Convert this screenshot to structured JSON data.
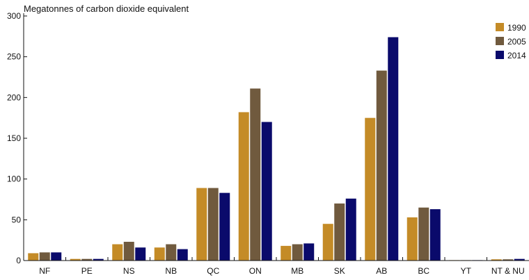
{
  "chart_data": {
    "type": "bar",
    "title": "",
    "ylabel": "Megatonnes of carbon dioxide equivalent",
    "xlabel": "",
    "ylim": [
      0,
      300
    ],
    "yticks": [
      0,
      50,
      100,
      150,
      200,
      250,
      300
    ],
    "grid": false,
    "legend_position": "top-right",
    "categories": [
      "NF",
      "PE",
      "NS",
      "NB",
      "QC",
      "ON",
      "MB",
      "SK",
      "AB",
      "BC",
      "YT",
      "NT & NU"
    ],
    "series": [
      {
        "name": "1990",
        "color": "#c48b27",
        "values": [
          9,
          2,
          20,
          16,
          89,
          182,
          18,
          45,
          175,
          53,
          0.5,
          1.5
        ]
      },
      {
        "name": "2005",
        "color": "#705a3e",
        "values": [
          10,
          2,
          23,
          20,
          89,
          211,
          20,
          70,
          233,
          65,
          0.5,
          1.5
        ]
      },
      {
        "name": "2014",
        "color": "#0a0a6b",
        "values": [
          10,
          2,
          16,
          14,
          83,
          170,
          21,
          76,
          274,
          63,
          0.3,
          2
        ]
      }
    ]
  }
}
